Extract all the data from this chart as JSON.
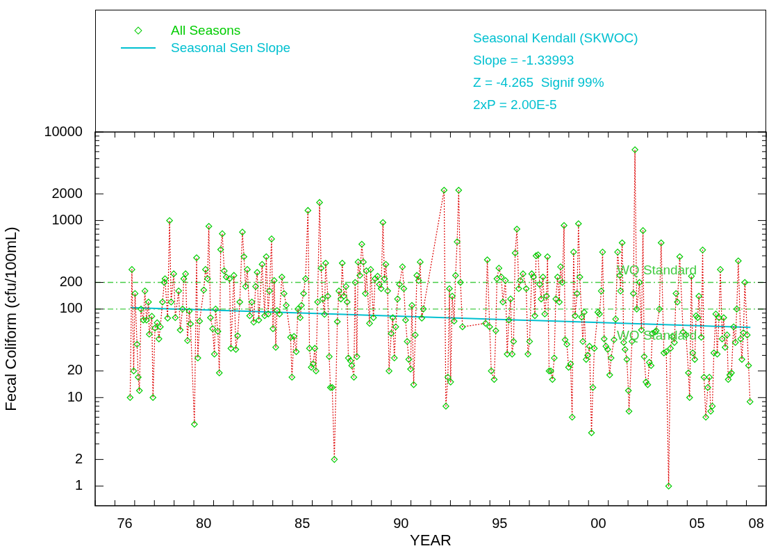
{
  "chart_data": {
    "type": "line",
    "xlabel": "YEAR",
    "ylabel": "Fecal Coliform (cfu/100mL)",
    "log": "y",
    "legend": "top left",
    "xlim": [
      "1975",
      "2009"
    ],
    "xticks": [
      {
        "value": "1975",
        "label": null
      },
      {
        "value": "1976",
        "label": null
      },
      {
        "value": "1977",
        "label": null
      },
      {
        "value": "1978",
        "label": null
      },
      {
        "value": "1979",
        "label": null
      },
      {
        "value": "1980",
        "label": null
      },
      {
        "value": "1981",
        "label": null
      },
      {
        "value": "1982",
        "label": null
      },
      {
        "value": "1983",
        "label": null
      },
      {
        "value": "1984",
        "label": null
      },
      {
        "value": "1985",
        "label": null
      },
      {
        "value": "1986",
        "label": null
      },
      {
        "value": "1987",
        "label": null
      },
      {
        "value": "1988",
        "label": null
      },
      {
        "value": "1989",
        "label": null
      },
      {
        "value": "1990",
        "label": null
      },
      {
        "value": "1991",
        "label": null
      },
      {
        "value": "1992",
        "label": null
      },
      {
        "value": "1993",
        "label": null
      },
      {
        "value": "1994",
        "label": null
      },
      {
        "value": "1995",
        "label": null
      },
      {
        "value": "1996",
        "label": null
      },
      {
        "value": "1997",
        "label": null
      },
      {
        "value": "1998",
        "label": null
      },
      {
        "value": "1999",
        "label": null
      },
      {
        "value": "2000",
        "label": null
      },
      {
        "value": "2001",
        "label": null
      },
      {
        "value": "2002",
        "label": null
      },
      {
        "value": "2003",
        "label": null
      },
      {
        "value": "2004",
        "label": null
      },
      {
        "value": "2005",
        "label": null
      },
      {
        "value": "2006",
        "label": null
      },
      {
        "value": "2007",
        "label": null
      },
      {
        "value": "2008",
        "label": null
      },
      {
        "value": "2009",
        "label": null
      },
      {
        "value": "1976-07",
        "label": "76"
      },
      {
        "value": "1980-07",
        "label": "80"
      },
      {
        "value": "1985-07",
        "label": "85"
      },
      {
        "value": "1990-07",
        "label": "90"
      },
      {
        "value": "1995-07",
        "label": "95"
      },
      {
        "value": "2000-07",
        "label": "00"
      },
      {
        "value": "2005-07",
        "label": "05"
      },
      {
        "value": "2008-07",
        "label": "08"
      }
    ],
    "ylim": [
      0.6,
      10000
    ],
    "yticks": [
      1,
      2,
      {
        "value": 3,
        "label": null
      },
      {
        "value": 4,
        "label": null
      },
      {
        "value": 5,
        "label": null
      },
      {
        "value": 6,
        "label": null
      },
      {
        "value": 7,
        "label": null
      },
      {
        "value": 8,
        "label": null
      },
      {
        "value": 9,
        "label": null
      },
      10,
      20,
      {
        "value": 30,
        "label": null
      },
      {
        "value": 40,
        "label": null
      },
      {
        "value": 50,
        "label": null
      },
      {
        "value": 60,
        "label": null
      },
      {
        "value": 70,
        "label": null
      },
      {
        "value": 80,
        "label": null
      },
      {
        "value": 90,
        "label": null
      },
      100,
      200,
      {
        "value": 300,
        "label": null
      },
      {
        "value": 400,
        "label": null
      },
      {
        "value": 500,
        "label": null
      },
      {
        "value": 600,
        "label": null
      },
      {
        "value": 700,
        "label": null
      },
      {
        "value": 800,
        "label": null
      },
      {
        "value": 900,
        "label": null
      },
      1000,
      2000,
      {
        "value": 3000,
        "label": null
      },
      {
        "value": 4000,
        "label": null
      },
      {
        "value": 5000,
        "label": null
      },
      {
        "value": 6000,
        "label": null
      },
      {
        "value": 7000,
        "label": null
      },
      {
        "value": 8000,
        "label": null
      },
      {
        "value": 9000,
        "label": null
      },
      10000
    ],
    "annotations": [
      "Seasonal Kendall (SKWOC)",
      "Slope = -1.33993",
      "Z = -4.265  Signif 99%",
      "2xP = 2.00E-5"
    ],
    "ref_lines": [
      {
        "axis": "y",
        "value": 200,
        "label": "WQ Standard",
        "color": "#44cc44",
        "line_style": "dashed"
      },
      {
        "axis": "y",
        "value": 100,
        "label": "WQ Standard",
        "color": "#44cc44",
        "line_style": "dashed"
      }
    ],
    "x": [
      "1976-10-09",
      "1976-11-11",
      "1976-12-14",
      "1977-01-08",
      "1977-02-14",
      "1977-03-08",
      "1977-03-30",
      "1977-04-28",
      "1977-06-11",
      "1977-07-10",
      "1977-08-08",
      "1977-09-14",
      "1977-09-28",
      "1977-11-15",
      "1977-12-06",
      "1978-01-12",
      "1978-02-21",
      "1978-03-26",
      "1978-04-21",
      "1978-05-31",
      "1978-07-03",
      "1978-07-17",
      "1978-09-03",
      "1978-10-09",
      "1978-11-07",
      "1978-12-25",
      "1979-01-23",
      "1979-03-26",
      "1979-04-24",
      "1979-06-07",
      "1979-06-29",
      "1979-08-01",
      "1979-09-06",
      "1979-10-09",
      "1979-10-31",
      "1980-01-12",
      "1980-02-21",
      "1980-03-15",
      "1980-04-17",
      "1980-07-03",
      "1980-08-04",
      "1980-09-10",
      "1980-10-05",
      "1980-11-04",
      "1980-12-14",
      "1981-01-16",
      "1981-02-07",
      "1981-03-22",
      "1981-04-17",
      "1981-05-12",
      "1981-06-11",
      "1981-07-17",
      "1981-08-23",
      "1981-10-24",
      "1981-11-18",
      "1982-01-12",
      "1982-02-17",
      "1982-03-22",
      "1982-05-01",
      "1982-06-18",
      "1982-07-17",
      "1982-08-15",
      "1982-09-17",
      "1982-10-31",
      "1982-12-10",
      "1983-01-12",
      "1983-02-17",
      "1983-03-19",
      "1983-04-17",
      "1983-06-18",
      "1983-08-04",
      "1983-09-03",
      "1983-10-09",
      "1983-10-31",
      "1983-12-10",
      "1984-01-05",
      "1984-01-27",
      "1984-02-25",
      "1984-03-19",
      "1984-05-05",
      "1984-06-18",
      "1984-07-28",
      "1984-09-06",
      "1984-11-26",
      "1984-12-21",
      "1985-01-27",
      "1985-03-11",
      "1985-04-10",
      "1985-05-23",
      "1985-06-14",
      "1985-07-24",
      "1985-08-30",
      "1985-10-13",
      "1985-11-11",
      "1985-12-14",
      "1986-01-16",
      "1986-02-17",
      "1986-03-11",
      "1986-04-10",
      "1986-05-16",
      "1986-06-14",
      "1986-07-13",
      "1986-08-15",
      "1986-09-06",
      "1986-10-16",
      "1986-11-11",
      "1986-12-03",
      "1987-01-05",
      "1987-02-14",
      "1987-04-10",
      "1987-05-09",
      "1987-06-14",
      "1987-07-10",
      "1987-08-08",
      "1987-09-17",
      "1987-10-09",
      "1987-10-31",
      "1987-12-10",
      "1988-01-01",
      "1988-02-10",
      "1988-03-04",
      "1988-04-06",
      "1988-04-28",
      "1988-05-31",
      "1988-07-06",
      "1988-08-04",
      "1988-09-10",
      "1988-09-28",
      "1988-11-26",
      "1988-12-17",
      "1989-02-07",
      "1989-03-08",
      "1989-04-24",
      "1989-05-27",
      "1989-06-29",
      "1989-08-01",
      "1989-08-30",
      "1989-09-24",
      "1989-10-27",
      "1989-11-22",
      "1990-01-01",
      "1990-01-30",
      "1990-02-28",
      "1990-03-26",
      "1990-04-28",
      "1990-06-03",
      "1990-07-28",
      "1990-08-23",
      "1990-09-24",
      "1990-10-24",
      "1990-11-22",
      "1990-12-25",
      "1991-01-19",
      "1991-02-21",
      "1991-03-22",
      "1991-04-21",
      "1991-05-23",
      "1991-06-22",
      "1991-07-21",
      "1991-08-19",
      "1992-09-06",
      "1992-10-09",
      "1992-11-15",
      "1992-12-14",
      "1993-01-05",
      "1993-02-03",
      "1993-03-11",
      "1993-04-06",
      "1993-05-05",
      "1993-06-03",
      "1993-07-06",
      "1993-08-12",
      "1994-10-13",
      "1994-11-15",
      "1994-12-28",
      "1995-01-27",
      "1995-03-22",
      "1995-04-21",
      "1995-05-12",
      "1995-06-18",
      "1995-08-01",
      "1995-08-30",
      "1995-10-16",
      "1995-11-18",
      "1995-12-17",
      "1996-01-19",
      "1996-02-17",
      "1996-03-15",
      "1996-04-13",
      "1996-05-16",
      "1996-06-18",
      "1996-07-17",
      "1996-09-06",
      "1996-11-04",
      "1996-12-06",
      "1997-01-05",
      "1997-02-14",
      "1997-03-19",
      "1997-04-13",
      "1997-05-05",
      "1997-06-11",
      "1997-07-10",
      "1997-08-08",
      "1997-09-10",
      "1997-10-13",
      "1997-11-15",
      "1997-12-03",
      "1998-01-01",
      "1998-02-03",
      "1998-03-04",
      "1998-04-06",
      "1998-05-05",
      "1998-06-07",
      "1998-07-10",
      "1998-08-01",
      "1998-09-03",
      "1998-10-05",
      "1998-10-24",
      "1998-11-26",
      "1998-12-28",
      "1999-02-03",
      "1999-03-04",
      "1999-03-30",
      "1999-04-28",
      "1999-06-03",
      "1999-06-29",
      "1999-07-24",
      "1999-08-26",
      "1999-09-17",
      "1999-10-13",
      "1999-11-18",
      "1999-12-17",
      "2000-01-19",
      "2000-02-25",
      "2000-03-22",
      "2000-04-17",
      "2000-06-22",
      "2000-07-21",
      "2000-08-23",
      "2000-09-17",
      "2000-10-16",
      "2000-11-18",
      "2000-12-21",
      "2001-01-27",
      "2001-02-21",
      "2001-04-17",
      "2001-05-16",
      "2001-06-22",
      "2001-08-01",
      "2001-08-15",
      "2001-09-14",
      "2001-10-13",
      "2001-11-07",
      "2001-12-10",
      "2002-01-08",
      "2002-01-19",
      "2002-03-15",
      "2002-04-10",
      "2002-05-09",
      "2002-06-11",
      "2002-08-01",
      "2002-09-06",
      "2002-10-05",
      "2002-10-27",
      "2002-11-29",
      "2003-01-01",
      "2003-01-30",
      "2003-03-04",
      "2003-03-26",
      "2003-05-16",
      "2003-06-07",
      "2003-08-04",
      "2003-09-06",
      "2003-10-27",
      "2003-12-10",
      "2004-01-23",
      "2004-02-25",
      "2004-03-26",
      "2004-05-09",
      "2004-06-07",
      "2004-07-03",
      "2004-08-15",
      "2004-10-16",
      "2004-12-10",
      "2005-01-23",
      "2005-02-14",
      "2005-03-19",
      "2005-04-13",
      "2005-05-20",
      "2005-06-14",
      "2005-07-13",
      "2005-08-04",
      "2005-09-17",
      "2005-10-13",
      "2005-11-07",
      "2005-12-10",
      "2006-01-16",
      "2006-02-14",
      "2006-03-11",
      "2006-04-10",
      "2006-05-09",
      "2006-06-14",
      "2006-07-10",
      "2006-08-12",
      "2006-09-06",
      "2006-10-09",
      "2006-11-07",
      "2006-12-03",
      "2007-01-08",
      "2007-01-30",
      "2007-02-28",
      "2007-03-30",
      "2007-05-09",
      "2007-06-11",
      "2007-07-06",
      "2007-08-04",
      "2007-09-17",
      "2007-10-09",
      "2007-11-07",
      "2007-12-03",
      "2008-01-16",
      "2008-02-10",
      "2008-03-08"
    ],
    "series": [
      {
        "type": "line",
        "color": "#dd0000",
        "line_style": "dotted",
        "marker": "none",
        "values": [
          10,
          280,
          20,
          150,
          40,
          17,
          12,
          100,
          75,
          160,
          75,
          120,
          52,
          83,
          10,
          61,
          70,
          46,
          63,
          120,
          200,
          220,
          79,
          1000,
          120,
          250,
          80,
          160,
          58,
          100,
          220,
          250,
          44,
          95,
          68,
          5,
          380,
          28,
          73,
          164,
          280,
          220,
          860,
          80,
          60,
          31,
          100,
          56,
          19,
          470,
          710,
          270,
          230,
          220,
          36,
          240,
          35,
          50,
          120,
          740,
          390,
          180,
          280,
          84,
          120,
          71,
          180,
          260,
          75,
          320,
          84,
          390,
          88,
          160,
          620,
          60,
          210,
          37,
          96,
          88,
          230,
          150,
          110,
          48,
          17,
          49,
          33,
          100,
          80,
          110,
          150,
          220,
          1300,
          36,
          22,
          24,
          36,
          20,
          120,
          1600,
          290,
          130,
          87,
          330,
          140,
          29,
          13,
          13,
          2,
          72,
          160,
          130,
          330,
          140,
          180,
          120,
          28,
          26,
          23,
          17,
          200,
          29,
          340,
          240,
          540,
          340,
          150,
          270,
          69,
          280,
          80,
          220,
          235,
          190,
          170,
          950,
          220,
          320,
          160,
          20,
          53,
          80,
          28,
          63,
          130,
          190,
          300,
          170,
          75,
          43,
          27,
          21,
          110,
          14,
          51,
          240,
          210,
          340,
          79,
          100,
          2200,
          8,
          17,
          170,
          15,
          140,
          73,
          240,
          575,
          2200,
          200,
          63,
          69,
          360,
          63,
          20,
          16,
          57,
          220,
          290,
          230,
          120,
          210,
          31,
          75,
          130,
          31,
          43,
          430,
          800,
          170,
          210,
          250,
          170,
          31,
          43,
          250,
          230,
          84,
          400,
          410,
          190,
          130,
          230,
          88,
          140,
          390,
          20,
          20,
          16,
          28,
          130,
          230,
          120,
          300,
          200,
          880,
          45,
          40,
          22,
          24,
          6,
          440,
          84,
          150,
          920,
          230,
          81,
          43,
          92,
          27,
          30,
          38,
          4,
          13,
          36,
          92,
          88,
          160,
          440,
          46,
          38,
          35,
          18,
          28,
          45,
          77,
          440,
          240,
          160,
          560,
          42,
          35,
          27,
          12,
          7,
          43,
          150,
          6300,
          100,
          200,
          58,
          770,
          29,
          15,
          14,
          25,
          23,
          53,
          55,
          57,
          100,
          560,
          32,
          33,
          1,
          36,
          49,
          42,
          150,
          120,
          390,
          55,
          51,
          19,
          10,
          235,
          32,
          27,
          84,
          80,
          140,
          48,
          465,
          17,
          6,
          13,
          17,
          7,
          8,
          32,
          88,
          31,
          80,
          280,
          46,
          80,
          37,
          51,
          16,
          18,
          19,
          63,
          42,
          100,
          350,
          46,
          27,
          54,
          200,
          51,
          23,
          9
        ]
      },
      {
        "type": "scatter",
        "name": "All Seasons",
        "color": "#00cc00",
        "marker": "diamond",
        "values": [
          10,
          280,
          20,
          150,
          40,
          17,
          12,
          100,
          75,
          160,
          75,
          120,
          52,
          83,
          10,
          61,
          70,
          46,
          63,
          120,
          200,
          220,
          79,
          1000,
          120,
          250,
          80,
          160,
          58,
          100,
          220,
          250,
          44,
          95,
          68,
          5,
          380,
          28,
          73,
          164,
          280,
          220,
          860,
          80,
          60,
          31,
          100,
          56,
          19,
          470,
          710,
          270,
          230,
          220,
          36,
          240,
          35,
          50,
          120,
          740,
          390,
          180,
          280,
          84,
          120,
          71,
          180,
          260,
          75,
          320,
          84,
          390,
          88,
          160,
          620,
          60,
          210,
          37,
          96,
          88,
          230,
          150,
          110,
          48,
          17,
          49,
          33,
          100,
          80,
          110,
          150,
          220,
          1300,
          36,
          22,
          24,
          36,
          20,
          120,
          1600,
          290,
          130,
          87,
          330,
          140,
          29,
          13,
          13,
          2,
          72,
          160,
          130,
          330,
          140,
          180,
          120,
          28,
          26,
          23,
          17,
          200,
          29,
          340,
          240,
          540,
          340,
          150,
          270,
          69,
          280,
          80,
          220,
          235,
          190,
          170,
          950,
          220,
          320,
          160,
          20,
          53,
          80,
          28,
          63,
          130,
          190,
          300,
          170,
          75,
          43,
          27,
          21,
          110,
          14,
          51,
          240,
          210,
          340,
          79,
          100,
          2200,
          8,
          17,
          170,
          15,
          140,
          73,
          240,
          575,
          2200,
          200,
          63,
          69,
          360,
          63,
          20,
          16,
          57,
          220,
          290,
          230,
          120,
          210,
          31,
          75,
          130,
          31,
          43,
          430,
          800,
          170,
          210,
          250,
          170,
          31,
          43,
          250,
          230,
          84,
          400,
          410,
          190,
          130,
          230,
          88,
          140,
          390,
          20,
          20,
          16,
          28,
          130,
          230,
          120,
          300,
          200,
          880,
          45,
          40,
          22,
          24,
          6,
          440,
          84,
          150,
          920,
          230,
          81,
          43,
          92,
          27,
          30,
          38,
          4,
          13,
          36,
          92,
          88,
          160,
          440,
          46,
          38,
          35,
          18,
          28,
          45,
          77,
          440,
          240,
          160,
          560,
          42,
          35,
          27,
          12,
          7,
          43,
          150,
          6300,
          100,
          200,
          58,
          770,
          29,
          15,
          14,
          25,
          23,
          53,
          55,
          57,
          100,
          560,
          32,
          33,
          1,
          36,
          49,
          42,
          150,
          120,
          390,
          55,
          51,
          19,
          10,
          235,
          32,
          27,
          84,
          80,
          140,
          48,
          465,
          17,
          6,
          13,
          17,
          7,
          8,
          32,
          88,
          31,
          80,
          280,
          46,
          80,
          37,
          51,
          16,
          18,
          19,
          63,
          42,
          100,
          350,
          46,
          27,
          54,
          200,
          51,
          23,
          9
        ]
      },
      {
        "type": "line",
        "name": "Seasonal Sen Slope",
        "color": "#00c0d0",
        "line_style": "solid",
        "marker": "none",
        "x": [
          "1976-10-13",
          "2008-03-15"
        ],
        "values": [
          104,
          62
        ]
      }
    ]
  }
}
